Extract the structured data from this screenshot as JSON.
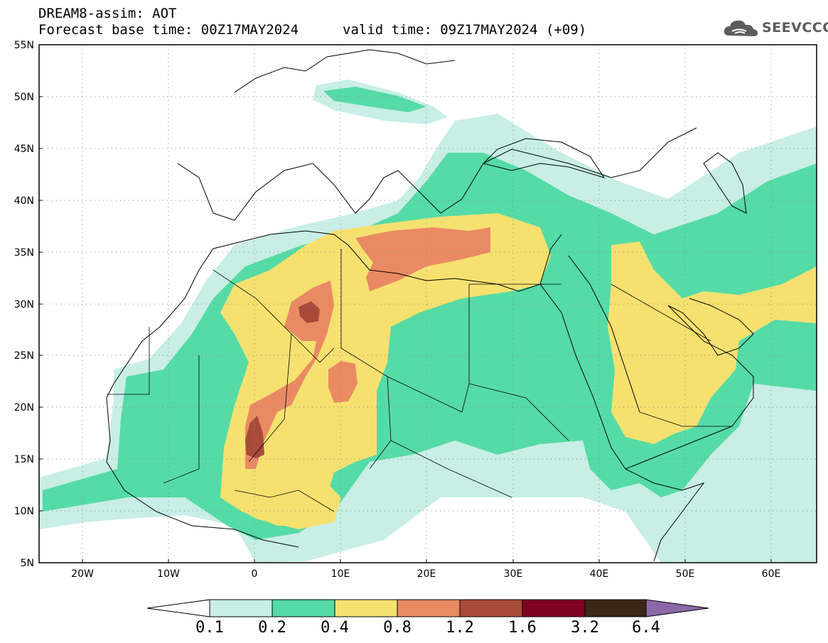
{
  "header": {
    "title_line1": "DREAM8-assim: AOT",
    "title_line2": "Forecast base time: 00Z17MAY2024",
    "valid_time": "valid time: 09Z17MAY2024 (+09)",
    "logo_text": "SEEVCCC"
  },
  "map": {
    "lat_labels": [
      "55N",
      "50N",
      "45N",
      "40N",
      "35N",
      "30N",
      "25N",
      "20N",
      "15N",
      "10N",
      "5N"
    ],
    "lon_labels": [
      "20W",
      "10W",
      "0",
      "10E",
      "20E",
      "30E",
      "40E",
      "50E",
      "60E"
    ],
    "lat_range": [
      5,
      55
    ],
    "lon_range": [
      -25,
      65
    ]
  },
  "colorbar": {
    "levels": [
      "0.1",
      "0.2",
      "0.4",
      "0.8",
      "1.2",
      "1.6",
      "3.2",
      "6.4"
    ],
    "colors": [
      "#ffffff",
      "#c8eee6",
      "#55dba6",
      "#f6e170",
      "#e98a63",
      "#a84a3a",
      "#800022",
      "#3b2718",
      "#8b68a6"
    ]
  },
  "colors": {
    "very_light": "#c8eee6",
    "green": "#55dba6",
    "yellow": "#f6e170",
    "orange": "#e98a63",
    "red_brown": "#a84a3a"
  }
}
